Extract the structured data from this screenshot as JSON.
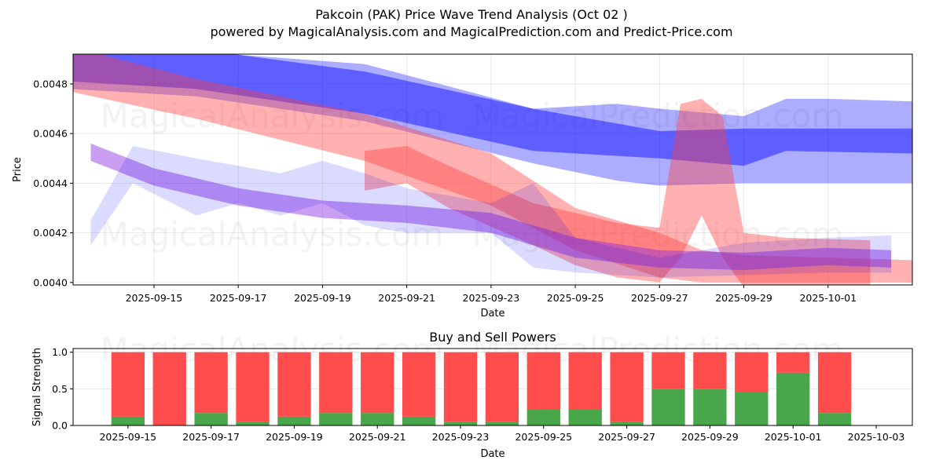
{
  "title": "Pakcoin (PAK) Price Wave Trend Analysis (Oct 02 )",
  "subtitle": "powered by MagicalAnalysis.com and MagicalPrediction.com and Predict-Price.com",
  "watermarks": [
    "MagicalAnalysis.com",
    "MagicalPrediction.com"
  ],
  "colors": {
    "buy": "#4aa64a",
    "sell": "#ff4c4c",
    "blue_band": "#0000ff",
    "red_band": "#ff3c3c"
  },
  "chart_data": [
    {
      "type": "area",
      "title": "",
      "xlabel": "Date",
      "ylabel": "Price",
      "x_range": [
        "2025-09-13",
        "2025-10-03"
      ],
      "ylim": [
        0.00399,
        0.00492
      ],
      "yticks": [
        "0.0040",
        "0.0042",
        "0.0044",
        "0.0046",
        "0.0048"
      ],
      "ytick_values": [
        0.004,
        0.0042,
        0.0044,
        0.0046,
        0.0048
      ],
      "xticks": [
        "2025-09-15",
        "2025-09-17",
        "2025-09-19",
        "2025-09-21",
        "2025-09-23",
        "2025-09-25",
        "2025-09-27",
        "2025-09-29",
        "2025-10-01"
      ],
      "grid": true,
      "series": [
        {
          "name": "blue-long-band-outer",
          "color": "blue",
          "opacity": 0.32,
          "x": [
            "2025-09-13",
            "2025-09-16",
            "2025-09-20",
            "2025-09-24",
            "2025-09-26",
            "2025-09-27",
            "2025-09-29",
            "2025-09-30",
            "2025-10-01",
            "2025-10-03"
          ],
          "upper": [
            0.00495,
            0.00493,
            0.00488,
            0.0047,
            0.00472,
            0.0047,
            0.00467,
            0.00474,
            0.00474,
            0.00473
          ],
          "lower": [
            0.00478,
            0.00475,
            0.00465,
            0.00448,
            0.00441,
            0.00439,
            0.0044,
            0.0044,
            0.0044,
            0.0044
          ]
        },
        {
          "name": "blue-long-band-inner",
          "color": "blue",
          "opacity": 0.45,
          "x": [
            "2025-09-13",
            "2025-09-16",
            "2025-09-20",
            "2025-09-24",
            "2025-09-27",
            "2025-09-29",
            "2025-09-30",
            "2025-10-03"
          ],
          "upper": [
            0.00498,
            0.00494,
            0.00485,
            0.0047,
            0.00461,
            0.00462,
            0.00462,
            0.00462
          ],
          "lower": [
            0.00481,
            0.00478,
            0.00468,
            0.00453,
            0.0045,
            0.00447,
            0.00453,
            0.00452
          ]
        },
        {
          "name": "red-long-band",
          "color": "red",
          "opacity": 0.4,
          "x": [
            "2025-09-13",
            "2025-09-16",
            "2025-09-20",
            "2025-09-23",
            "2025-09-25",
            "2025-09-27",
            "2025-09-28",
            "2025-09-29",
            "2025-10-03"
          ],
          "upper": [
            0.00495,
            0.00482,
            0.00468,
            0.00452,
            0.0043,
            0.0042,
            0.00413,
            0.00411,
            0.00409
          ],
          "lower": [
            0.00477,
            0.00466,
            0.00449,
            0.00431,
            0.00413,
            0.00402,
            0.004,
            0.004,
            0.004
          ]
        },
        {
          "name": "red-spike-band",
          "color": "red",
          "opacity": 0.4,
          "x": [
            "2025-09-20",
            "2025-09-21",
            "2025-09-22",
            "2025-09-24",
            "2025-09-25",
            "2025-09-26",
            "2025-09-27",
            "2025-09-27.5",
            "2025-09-28",
            "2025-09-28.5",
            "2025-09-29",
            "2025-09-30",
            "2025-10-02"
          ],
          "upper": [
            0.00453,
            0.00455,
            0.00447,
            0.00432,
            0.00428,
            0.00424,
            0.00422,
            0.00472,
            0.00474,
            0.00467,
            0.0042,
            0.00418,
            0.00417
          ],
          "lower": [
            0.00437,
            0.0044,
            0.0043,
            0.00415,
            0.00407,
            0.00402,
            0.004,
            0.0041,
            0.00427,
            0.0041,
            0.00398,
            0.00398,
            0.00398
          ]
        },
        {
          "name": "short-wave-purple",
          "color": "purple",
          "opacity": 0.45,
          "x": [
            "2025-09-13.5",
            "2025-09-15",
            "2025-09-17",
            "2025-09-19",
            "2025-09-21",
            "2025-09-23",
            "2025-09-25",
            "2025-09-27",
            "2025-09-29",
            "2025-10-01",
            "2025-10-02.5"
          ],
          "upper": [
            0.00456,
            0.00446,
            0.00438,
            0.00433,
            0.00431,
            0.00428,
            0.00418,
            0.00413,
            0.00412,
            0.00414,
            0.00413
          ],
          "lower": [
            0.00449,
            0.00439,
            0.00431,
            0.00426,
            0.00424,
            0.0042,
            0.0041,
            0.00406,
            0.00405,
            0.00407,
            0.00406
          ]
        },
        {
          "name": "short-wave-blue-zigzag",
          "color": "blue",
          "opacity": 0.14,
          "x": [
            "2025-09-13.5",
            "2025-09-14.5",
            "2025-09-16",
            "2025-09-17",
            "2025-09-18",
            "2025-09-19",
            "2025-09-20",
            "2025-09-21",
            "2025-09-23",
            "2025-09-24",
            "2025-09-25",
            "2025-09-27",
            "2025-09-29",
            "2025-10-01",
            "2025-10-02.5"
          ],
          "upper": [
            0.00425,
            0.00455,
            0.0045,
            0.00447,
            0.00444,
            0.00449,
            0.00444,
            0.00438,
            0.00432,
            0.0044,
            0.00418,
            0.0041,
            0.00416,
            0.00418,
            0.00419
          ],
          "lower": [
            0.00415,
            0.0044,
            0.00427,
            0.00432,
            0.00427,
            0.00432,
            0.00423,
            0.0042,
            0.0042,
            0.00406,
            0.00404,
            0.00402,
            0.00403,
            0.00404,
            0.00404
          ]
        }
      ]
    },
    {
      "type": "bar",
      "stacked": true,
      "title": "Buy and Sell Powers",
      "xlabel": "Date",
      "ylabel": "Signal Strength",
      "ylim": [
        0,
        1.05
      ],
      "yticks": [
        "0.0",
        "0.5",
        "1.0"
      ],
      "ytick_values": [
        0,
        0.5,
        1.0
      ],
      "x_range": [
        "2025-09-13.7",
        "2025-10-03.9"
      ],
      "xticks": [
        "2025-09-15",
        "2025-09-17",
        "2025-09-19",
        "2025-09-21",
        "2025-09-23",
        "2025-09-25",
        "2025-09-27",
        "2025-09-29",
        "2025-10-01",
        "2025-10-03"
      ],
      "grid": true,
      "categories": [
        "2025-09-15",
        "2025-09-16",
        "2025-09-17",
        "2025-09-18",
        "2025-09-19",
        "2025-09-20",
        "2025-09-21",
        "2025-09-22",
        "2025-09-23",
        "2025-09-24",
        "2025-09-25",
        "2025-09-26",
        "2025-09-27",
        "2025-09-28",
        "2025-09-29",
        "2025-09-30",
        "2025-10-01",
        "2025-10-02"
      ],
      "series": [
        {
          "name": "Buy",
          "color": "#4aa64a",
          "values": [
            0.12,
            0.0,
            0.17,
            0.05,
            0.12,
            0.17,
            0.17,
            0.12,
            0.05,
            0.05,
            0.22,
            0.22,
            0.05,
            0.5,
            0.5,
            0.45,
            0.72,
            0.17
          ]
        },
        {
          "name": "Sell",
          "color": "#ff4c4c",
          "values": [
            0.88,
            1.0,
            0.83,
            0.95,
            0.88,
            0.83,
            0.83,
            0.88,
            0.95,
            0.95,
            0.78,
            0.78,
            0.95,
            0.5,
            0.5,
            0.55,
            0.28,
            0.83
          ]
        }
      ]
    }
  ]
}
